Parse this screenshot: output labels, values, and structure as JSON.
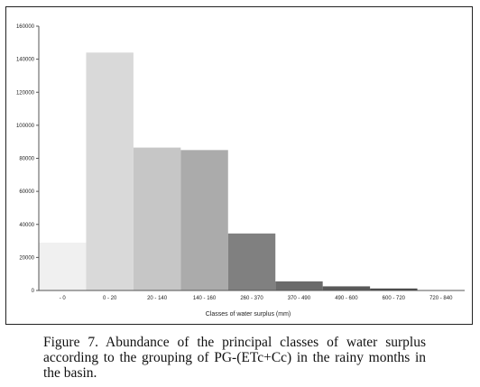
{
  "caption": "Figure 7. Abundance of the principal classes of water surplus according to the grouping of PG-(ETc+Cc) in the rainy months in the basin.",
  "chart_data": {
    "type": "bar",
    "title": "",
    "xlabel": "Classes of water surplus (mm)",
    "ylabel": "",
    "ylim": [
      0,
      160000
    ],
    "yticks": [
      0,
      20000,
      40000,
      60000,
      80000,
      100000,
      120000,
      140000,
      160000
    ],
    "ytick_labels": [
      "0",
      "20000",
      "40000",
      "60000",
      "80000",
      "100000",
      "120000",
      "140000",
      "160000"
    ],
    "grid": false,
    "legend": "none",
    "categories": [
      "- 0",
      "0 - 20",
      "20 - 140",
      "140 - 160",
      "260 - 370",
      "370 - 490",
      "490 - 600",
      "600 - 720",
      "720 - 840"
    ],
    "values": [
      29000,
      144000,
      86500,
      85000,
      34500,
      5500,
      2500,
      1200,
      0
    ],
    "colors": [
      "#f0f0f0",
      "#d9d9d9",
      "#c6c6c6",
      "#ababab",
      "#808080",
      "#6b6b6b",
      "#595959",
      "#4a4a4a",
      "#3a3a3a"
    ]
  }
}
